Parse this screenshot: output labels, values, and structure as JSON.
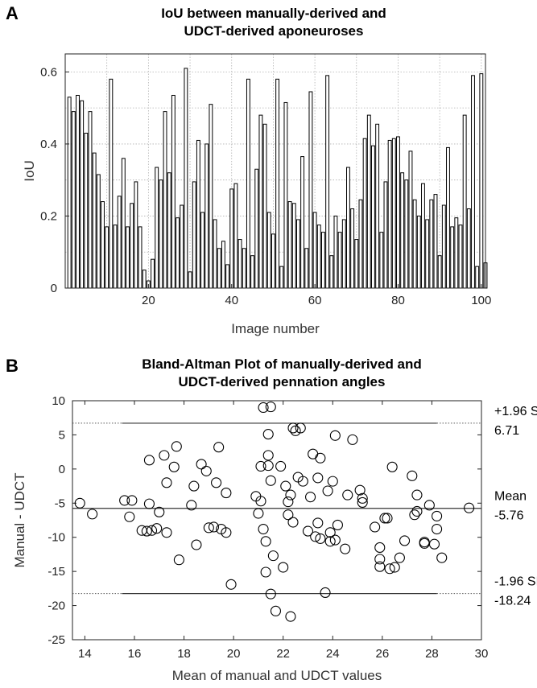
{
  "panels": {
    "a": "A",
    "b": "B"
  },
  "chart_data": [
    {
      "type": "bar",
      "title_line1": "IoU between manually-derived and",
      "title_line2": "UDCT-derived aponeuroses",
      "xlabel": "Image number",
      "ylabel": "IoU",
      "xlim": [
        0,
        101
      ],
      "ylim": [
        0,
        0.65
      ],
      "xticks": [
        20,
        40,
        60,
        80,
        100
      ],
      "yticks": [
        0,
        0.2,
        0.4,
        0.6
      ],
      "grid": true,
      "values": [
        0.53,
        0.49,
        0.535,
        0.52,
        0.43,
        0.49,
        0.375,
        0.315,
        0.24,
        0.17,
        0.58,
        0.175,
        0.255,
        0.36,
        0.17,
        0.235,
        0.295,
        0.17,
        0.05,
        0.02,
        0.08,
        0.335,
        0.3,
        0.49,
        0.32,
        0.535,
        0.195,
        0.23,
        0.61,
        0.045,
        0.295,
        0.41,
        0.21,
        0.4,
        0.51,
        0.19,
        0.11,
        0.13,
        0.065,
        0.275,
        0.29,
        0.135,
        0.11,
        0.58,
        0.09,
        0.33,
        0.48,
        0.455,
        0.21,
        0.15,
        0.58,
        0.06,
        0.515,
        0.24,
        0.235,
        0.19,
        0.365,
        0.11,
        0.545,
        0.21,
        0.175,
        0.155,
        0.59,
        0.09,
        0.2,
        0.155,
        0.19,
        0.335,
        0.22,
        0.135,
        0.245,
        0.415,
        0.48,
        0.395,
        0.455,
        0.155,
        0.295,
        0.41,
        0.415,
        0.42,
        0.32,
        0.3,
        0.38,
        0.245,
        0.2,
        0.29,
        0.19,
        0.245,
        0.26,
        0.09,
        0.23,
        0.39,
        0.17,
        0.195,
        0.175,
        0.48,
        0.22,
        0.59,
        0.06,
        0.595,
        0.07
      ]
    },
    {
      "type": "scatter",
      "title_line1": "Bland-Altman Plot of manually-derived and",
      "title_line2": "UDCT-derived pennation angles",
      "xlabel": "Mean of manual and UDCT values",
      "ylabel": "Manual - UDCT",
      "xlim": [
        13.5,
        30
      ],
      "ylim": [
        -25,
        10
      ],
      "xticks": [
        14,
        16,
        18,
        20,
        22,
        24,
        26,
        28,
        30
      ],
      "yticks": [
        -25,
        -20,
        -15,
        -10,
        -5,
        0,
        5,
        10
      ],
      "grid": false,
      "lines": {
        "upper": 6.71,
        "mean": -5.76,
        "lower": -18.24,
        "x_start": 15.5,
        "x_end": 28.2
      },
      "labels": {
        "upper_name": "+1.96 SD",
        "upper_value": "6.71",
        "mean_name": "Mean",
        "mean_value": "-5.76",
        "lower_name": "-1.96 SD",
        "lower_value": "-18.24"
      },
      "points": [
        [
          13.8,
          -5
        ],
        [
          14.3,
          -6.6
        ],
        [
          15.6,
          -4.6
        ],
        [
          15.8,
          -7
        ],
        [
          15.9,
          -4.6
        ],
        [
          16.3,
          -9
        ],
        [
          16.5,
          -9.1
        ],
        [
          16.6,
          1.3
        ],
        [
          16.6,
          -5.1
        ],
        [
          16.7,
          -9
        ],
        [
          16.9,
          -8.7
        ],
        [
          17.0,
          -6.3
        ],
        [
          17.2,
          2
        ],
        [
          17.3,
          -9.3
        ],
        [
          17.3,
          -2
        ],
        [
          17.6,
          0.3
        ],
        [
          17.7,
          3.3
        ],
        [
          17.8,
          -13.3
        ],
        [
          18.3,
          -5.3
        ],
        [
          18.4,
          -2.5
        ],
        [
          18.5,
          -11.1
        ],
        [
          18.7,
          0.7
        ],
        [
          18.9,
          -0.3
        ],
        [
          19.0,
          -8.6
        ],
        [
          19.2,
          -8.5
        ],
        [
          19.3,
          -2
        ],
        [
          19.4,
          3.2
        ],
        [
          19.5,
          -8.8
        ],
        [
          19.7,
          -9.3
        ],
        [
          19.7,
          -3.5
        ],
        [
          19.9,
          -16.9
        ],
        [
          20.9,
          -4
        ],
        [
          21.0,
          -6.5
        ],
        [
          21.1,
          0.4
        ],
        [
          21.1,
          -4.7
        ],
        [
          21.2,
          -8.8
        ],
        [
          21.2,
          9
        ],
        [
          21.3,
          -15.1
        ],
        [
          21.3,
          -10.6
        ],
        [
          21.4,
          2
        ],
        [
          21.4,
          5.1
        ],
        [
          21.4,
          0.5
        ],
        [
          21.5,
          9.1
        ],
        [
          21.5,
          -1.7
        ],
        [
          21.5,
          -18.3
        ],
        [
          21.6,
          -12.7
        ],
        [
          21.7,
          -20.8
        ],
        [
          21.9,
          0.4
        ],
        [
          22.0,
          -14.4
        ],
        [
          22.1,
          -2.5
        ],
        [
          22.2,
          -4.8
        ],
        [
          22.2,
          -6.7
        ],
        [
          22.3,
          -3.8
        ],
        [
          22.3,
          -21.6
        ],
        [
          22.4,
          -7.8
        ],
        [
          22.4,
          6
        ],
        [
          22.5,
          5.6
        ],
        [
          22.6,
          -1.2
        ],
        [
          22.7,
          6
        ],
        [
          22.8,
          -1.8
        ],
        [
          23.0,
          -9.1
        ],
        [
          23.1,
          -4.1
        ],
        [
          23.2,
          2.2
        ],
        [
          23.3,
          -9.9
        ],
        [
          23.4,
          -1.3
        ],
        [
          23.4,
          -7.9
        ],
        [
          23.5,
          -10.2
        ],
        [
          23.5,
          1.6
        ],
        [
          23.7,
          -18.1
        ],
        [
          23.8,
          -3.2
        ],
        [
          23.9,
          -9.3
        ],
        [
          23.9,
          -10.6
        ],
        [
          24.0,
          -1.8
        ],
        [
          24.1,
          4.9
        ],
        [
          24.1,
          -10.4
        ],
        [
          24.2,
          -8.2
        ],
        [
          24.5,
          -11.7
        ],
        [
          24.6,
          -3.8
        ],
        [
          24.8,
          4.3
        ],
        [
          25.1,
          -3.1
        ],
        [
          25.2,
          -4.3
        ],
        [
          25.2,
          -4.9
        ],
        [
          25.7,
          -8.5
        ],
        [
          25.9,
          -11.5
        ],
        [
          25.9,
          -13.2
        ],
        [
          25.9,
          -14.3
        ],
        [
          26.1,
          -7.2
        ],
        [
          26.2,
          -7.2
        ],
        [
          26.3,
          -14.6
        ],
        [
          26.4,
          0.3
        ],
        [
          26.5,
          -14.4
        ],
        [
          26.7,
          -13
        ],
        [
          26.9,
          -10.5
        ],
        [
          27.2,
          -1
        ],
        [
          27.3,
          -6.7
        ],
        [
          27.4,
          -6.2
        ],
        [
          27.4,
          -3.8
        ],
        [
          27.7,
          -10.7
        ],
        [
          27.7,
          -10.9
        ],
        [
          27.9,
          -5.3
        ],
        [
          28.2,
          -6.9
        ],
        [
          28.2,
          -8.8
        ],
        [
          28.4,
          -13
        ],
        [
          28.1,
          -11
        ],
        [
          29.5,
          -5.7
        ]
      ]
    }
  ]
}
